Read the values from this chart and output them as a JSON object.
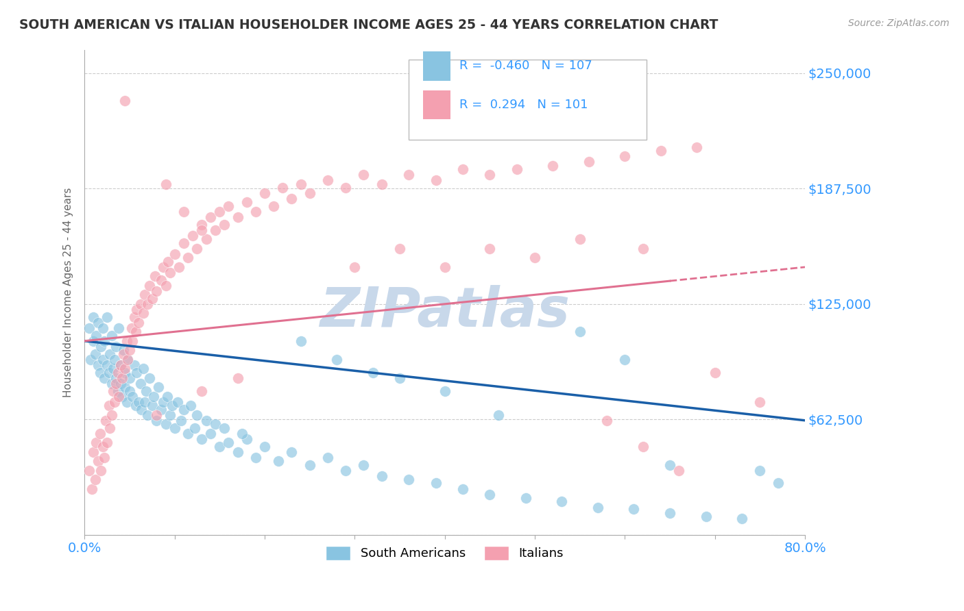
{
  "title": "SOUTH AMERICAN VS ITALIAN HOUSEHOLDER INCOME AGES 25 - 44 YEARS CORRELATION CHART",
  "source": "Source: ZipAtlas.com",
  "ylabel": "Householder Income Ages 25 - 44 years",
  "xlim": [
    0.0,
    0.8
  ],
  "ylim": [
    0,
    262500
  ],
  "yticks": [
    0,
    62500,
    125000,
    187500,
    250000
  ],
  "ytick_labels": [
    "",
    "$62,500",
    "$125,000",
    "$187,500",
    "$250,000"
  ],
  "xticks": [
    0.0,
    0.1,
    0.2,
    0.3,
    0.4,
    0.5,
    0.6,
    0.7,
    0.8
  ],
  "xtick_labels": [
    "0.0%",
    "",
    "",
    "",
    "",
    "",
    "",
    "",
    "80.0%"
  ],
  "r_blue": -0.46,
  "n_blue": 107,
  "r_pink": 0.294,
  "n_pink": 101,
  "blue_color": "#89c4e1",
  "pink_color": "#f4a0b0",
  "blue_line_color": "#1a5fa8",
  "pink_line_color": "#e07090",
  "title_color": "#333333",
  "axis_label_color": "#666666",
  "tick_label_color": "#3399ff",
  "grid_color": "#cccccc",
  "watermark": "ZIPatlas",
  "watermark_color": "#c8d8ea",
  "legend_label_blue": "South Americans",
  "legend_label_pink": "Italians",
  "blue_scatter_x": [
    0.005,
    0.007,
    0.01,
    0.01,
    0.012,
    0.013,
    0.015,
    0.015,
    0.017,
    0.018,
    0.02,
    0.02,
    0.022,
    0.022,
    0.025,
    0.025,
    0.027,
    0.028,
    0.03,
    0.03,
    0.032,
    0.033,
    0.035,
    0.035,
    0.037,
    0.038,
    0.04,
    0.04,
    0.042,
    0.043,
    0.045,
    0.045,
    0.047,
    0.048,
    0.05,
    0.05,
    0.053,
    0.055,
    0.057,
    0.058,
    0.06,
    0.062,
    0.063,
    0.065,
    0.067,
    0.068,
    0.07,
    0.072,
    0.075,
    0.077,
    0.08,
    0.082,
    0.085,
    0.087,
    0.09,
    0.092,
    0.095,
    0.097,
    0.1,
    0.103,
    0.107,
    0.11,
    0.115,
    0.118,
    0.122,
    0.125,
    0.13,
    0.135,
    0.14,
    0.145,
    0.15,
    0.155,
    0.16,
    0.17,
    0.18,
    0.19,
    0.2,
    0.215,
    0.23,
    0.25,
    0.27,
    0.29,
    0.31,
    0.33,
    0.36,
    0.39,
    0.42,
    0.45,
    0.49,
    0.53,
    0.57,
    0.61,
    0.65,
    0.69,
    0.73,
    0.35,
    0.28,
    0.4,
    0.46,
    0.32,
    0.24,
    0.175,
    0.55,
    0.6,
    0.65,
    0.75,
    0.77
  ],
  "blue_scatter_y": [
    112000,
    95000,
    105000,
    118000,
    98000,
    108000,
    92000,
    115000,
    88000,
    102000,
    95000,
    112000,
    85000,
    105000,
    92000,
    118000,
    88000,
    98000,
    82000,
    108000,
    90000,
    95000,
    85000,
    102000,
    78000,
    112000,
    82000,
    92000,
    75000,
    100000,
    80000,
    88000,
    72000,
    95000,
    78000,
    85000,
    75000,
    92000,
    70000,
    88000,
    72000,
    82000,
    68000,
    90000,
    72000,
    78000,
    65000,
    85000,
    70000,
    75000,
    62000,
    80000,
    68000,
    72000,
    60000,
    75000,
    65000,
    70000,
    58000,
    72000,
    62000,
    68000,
    55000,
    70000,
    58000,
    65000,
    52000,
    62000,
    55000,
    60000,
    48000,
    58000,
    50000,
    45000,
    52000,
    42000,
    48000,
    40000,
    45000,
    38000,
    42000,
    35000,
    38000,
    32000,
    30000,
    28000,
    25000,
    22000,
    20000,
    18000,
    15000,
    14000,
    12000,
    10000,
    9000,
    85000,
    95000,
    78000,
    65000,
    88000,
    105000,
    55000,
    110000,
    95000,
    38000,
    35000,
    28000
  ],
  "pink_scatter_x": [
    0.005,
    0.008,
    0.01,
    0.012,
    0.013,
    0.015,
    0.017,
    0.018,
    0.02,
    0.022,
    0.023,
    0.025,
    0.027,
    0.028,
    0.03,
    0.032,
    0.033,
    0.035,
    0.037,
    0.038,
    0.04,
    0.042,
    0.043,
    0.045,
    0.047,
    0.048,
    0.05,
    0.052,
    0.053,
    0.055,
    0.057,
    0.058,
    0.06,
    0.062,
    0.065,
    0.067,
    0.07,
    0.072,
    0.075,
    0.078,
    0.08,
    0.085,
    0.087,
    0.09,
    0.093,
    0.095,
    0.1,
    0.105,
    0.11,
    0.115,
    0.12,
    0.125,
    0.13,
    0.135,
    0.14,
    0.145,
    0.15,
    0.155,
    0.16,
    0.17,
    0.18,
    0.19,
    0.2,
    0.21,
    0.22,
    0.23,
    0.24,
    0.25,
    0.27,
    0.29,
    0.31,
    0.33,
    0.36,
    0.39,
    0.42,
    0.45,
    0.48,
    0.52,
    0.56,
    0.6,
    0.64,
    0.68,
    0.3,
    0.35,
    0.4,
    0.45,
    0.5,
    0.08,
    0.13,
    0.17,
    0.55,
    0.62,
    0.7,
    0.75,
    0.58,
    0.62,
    0.66,
    0.13,
    0.11,
    0.09,
    0.045
  ],
  "pink_scatter_y": [
    35000,
    25000,
    45000,
    30000,
    50000,
    40000,
    55000,
    35000,
    48000,
    42000,
    62000,
    50000,
    70000,
    58000,
    65000,
    78000,
    72000,
    82000,
    88000,
    75000,
    92000,
    85000,
    98000,
    90000,
    105000,
    95000,
    100000,
    112000,
    105000,
    118000,
    110000,
    122000,
    115000,
    125000,
    120000,
    130000,
    125000,
    135000,
    128000,
    140000,
    132000,
    138000,
    145000,
    135000,
    148000,
    142000,
    152000,
    145000,
    158000,
    150000,
    162000,
    155000,
    168000,
    160000,
    172000,
    165000,
    175000,
    168000,
    178000,
    172000,
    180000,
    175000,
    185000,
    178000,
    188000,
    182000,
    190000,
    185000,
    192000,
    188000,
    195000,
    190000,
    195000,
    192000,
    198000,
    195000,
    198000,
    200000,
    202000,
    205000,
    208000,
    210000,
    145000,
    155000,
    145000,
    155000,
    150000,
    65000,
    78000,
    85000,
    160000,
    155000,
    88000,
    72000,
    62000,
    48000,
    35000,
    165000,
    175000,
    190000,
    235000
  ]
}
